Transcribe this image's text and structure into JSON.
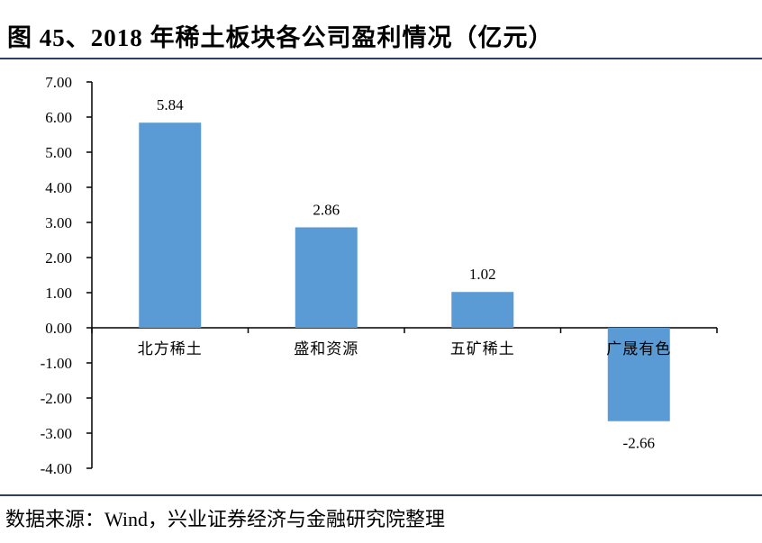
{
  "header": {
    "title": "图 45、2018 年稀土板块各公司盈利情况（亿元）"
  },
  "footer": {
    "source": "数据来源：Wind，兴业证券经济与金融研究院整理"
  },
  "chart_data": {
    "type": "bar",
    "title": "",
    "xlabel": "",
    "ylabel": "",
    "categories": [
      "北方稀土",
      "盛和资源",
      "五矿稀土",
      "广晟有色"
    ],
    "values": [
      5.84,
      2.86,
      1.02,
      -2.66
    ],
    "data_labels": [
      "5.84",
      "2.86",
      "1.02",
      "-2.66"
    ],
    "ylim": [
      -4,
      7
    ],
    "yticks": [
      7,
      6,
      5,
      4,
      3,
      2,
      1,
      0,
      -1,
      -2,
      -3,
      -4
    ],
    "ytick_labels": [
      "7.00",
      "6.00",
      "5.00",
      "4.00",
      "3.00",
      "2.00",
      "1.00",
      "0.00",
      "-1.00",
      "-2.00",
      "-3.00",
      "-4.00"
    ],
    "grid": false,
    "legend": "none",
    "colors": {
      "bar": "#5b9bd5",
      "axis": "#000000",
      "rule": "#2e3d6b"
    }
  }
}
